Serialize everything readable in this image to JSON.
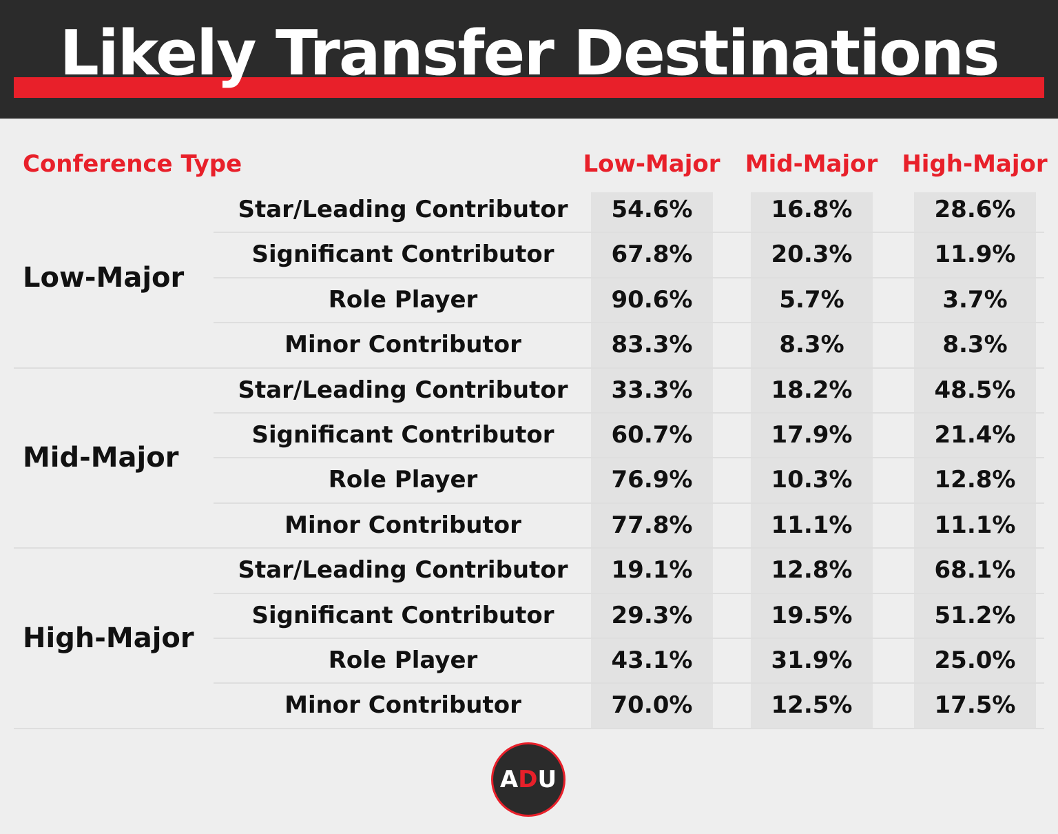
{
  "title": "Likely Transfer Destinations",
  "chart_data": {
    "type": "table",
    "row_header": "Conference Type",
    "columns": [
      "Low-Major",
      "Mid-Major",
      "High-Major"
    ],
    "groups": [
      {
        "name": "Low-Major",
        "rows": [
          {
            "label": "Star/Leading Contributor",
            "values": [
              "54.6%",
              "16.8%",
              "28.6%"
            ]
          },
          {
            "label": "Significant Contributor",
            "values": [
              "67.8%",
              "20.3%",
              "11.9%"
            ]
          },
          {
            "label": "Role Player",
            "values": [
              "90.6%",
              "5.7%",
              "3.7%"
            ]
          },
          {
            "label": "Minor Contributor",
            "values": [
              "83.3%",
              "8.3%",
              "8.3%"
            ]
          }
        ]
      },
      {
        "name": "Mid-Major",
        "rows": [
          {
            "label": "Star/Leading Contributor",
            "values": [
              "33.3%",
              "18.2%",
              "48.5%"
            ]
          },
          {
            "label": "Significant Contributor",
            "values": [
              "60.7%",
              "17.9%",
              "21.4%"
            ]
          },
          {
            "label": "Role Player",
            "values": [
              "76.9%",
              "10.3%",
              "12.8%"
            ]
          },
          {
            "label": "Minor Contributor",
            "values": [
              "77.8%",
              "11.1%",
              "11.1%"
            ]
          }
        ]
      },
      {
        "name": "High-Major",
        "rows": [
          {
            "label": "Star/Leading Contributor",
            "values": [
              "19.1%",
              "12.8%",
              "68.1%"
            ]
          },
          {
            "label": "Significant Contributor",
            "values": [
              "29.3%",
              "19.5%",
              "51.2%"
            ]
          },
          {
            "label": "Role Player",
            "values": [
              "43.1%",
              "31.9%",
              "25.0%"
            ]
          },
          {
            "label": "Minor Contributor",
            "values": [
              "70.0%",
              "12.5%",
              "17.5%"
            ]
          }
        ]
      }
    ]
  },
  "logo": {
    "a": "A",
    "d": "D",
    "u": "U"
  },
  "colors": {
    "accent": "#e8202a",
    "header_bg": "#2b2b2b",
    "page_bg": "#eeeeee",
    "column_bg": "#e2e2e2"
  }
}
